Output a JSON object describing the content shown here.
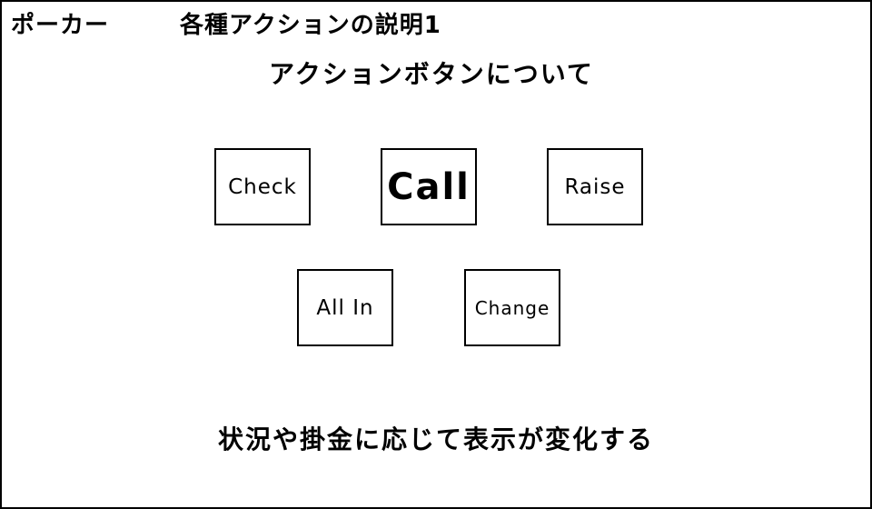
{
  "header": {
    "app_title": "ポーカー",
    "page_title": "各種アクションの説明1"
  },
  "main": {
    "section_heading": "アクションボタンについて",
    "buttons": [
      {
        "label": "Check"
      },
      {
        "label": "Call"
      },
      {
        "label": "Raise"
      },
      {
        "label": "All In"
      },
      {
        "label": "Change"
      }
    ],
    "footer_note": "状況や掛金に応じて表示が変化する"
  }
}
